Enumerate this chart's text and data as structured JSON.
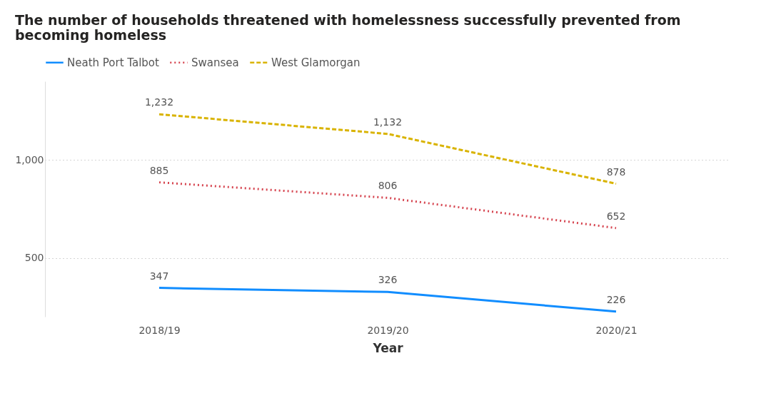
{
  "chart_data": {
    "type": "line",
    "title": "The number of households threatened with homelessness successfully prevented from becoming homeless",
    "xlabel": "Year",
    "categories": [
      "2018/19",
      "2019/20",
      "2020/21"
    ],
    "series": [
      {
        "name": "Neath Port Talbot",
        "color": "#118dff",
        "line_style": "solid",
        "values": [
          347,
          326,
          226
        ],
        "value_labels": [
          "347",
          "326",
          "226"
        ]
      },
      {
        "name": "Swansea",
        "color": "#d64550",
        "line_style": "dotted",
        "values": [
          885,
          806,
          652
        ],
        "value_labels": [
          "885",
          "806",
          "652"
        ]
      },
      {
        "name": "West Glamorgan",
        "color": "#d9b300",
        "line_style": "dashed",
        "values": [
          1232,
          1132,
          878
        ],
        "value_labels": [
          "1,232",
          "1,132",
          "878"
        ]
      }
    ],
    "ylim": [
      200,
      1400
    ],
    "yticks": [
      500,
      {
        "value": 1000,
        "label": "1,000"
      }
    ],
    "grid": "y",
    "legend": "top left"
  }
}
